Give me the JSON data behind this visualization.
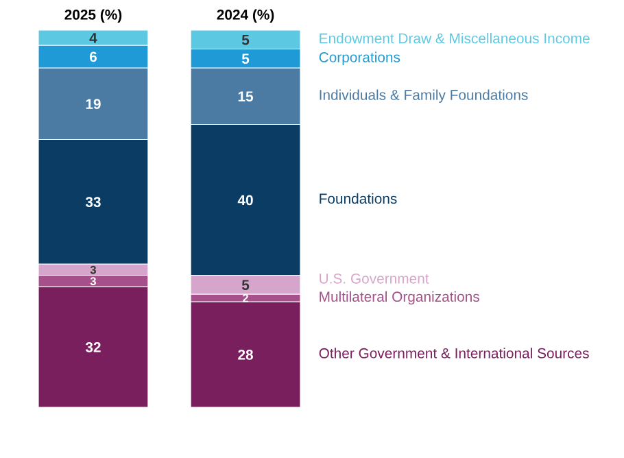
{
  "chart_data": {
    "type": "bar",
    "stacked": true,
    "data_labels": true,
    "legend": false,
    "grid": false,
    "categories": [
      "2025 (%)",
      "2024 (%)"
    ],
    "series": [
      {
        "name": "Other Government & International Sources",
        "color": "#7a1f5e",
        "values": [
          32,
          28
        ]
      },
      {
        "name": "Multilateral Organizations",
        "color": "#a5508a",
        "values": [
          3,
          2
        ]
      },
      {
        "name": "U.S. Government",
        "color": "#d6a5cb",
        "values": [
          3,
          5
        ]
      },
      {
        "name": "Foundations",
        "color": "#0b3c64",
        "values": [
          33,
          40
        ]
      },
      {
        "name": "Individuals & Family Foundations",
        "color": "#4b7ba2",
        "values": [
          19,
          15
        ]
      },
      {
        "name": "Corporations",
        "color": "#1f9ad6",
        "values": [
          6,
          5
        ]
      },
      {
        "name": "Endowment Draw & Miscellaneous Income",
        "color": "#5cc8e2",
        "values": [
          4,
          5
        ]
      }
    ]
  }
}
